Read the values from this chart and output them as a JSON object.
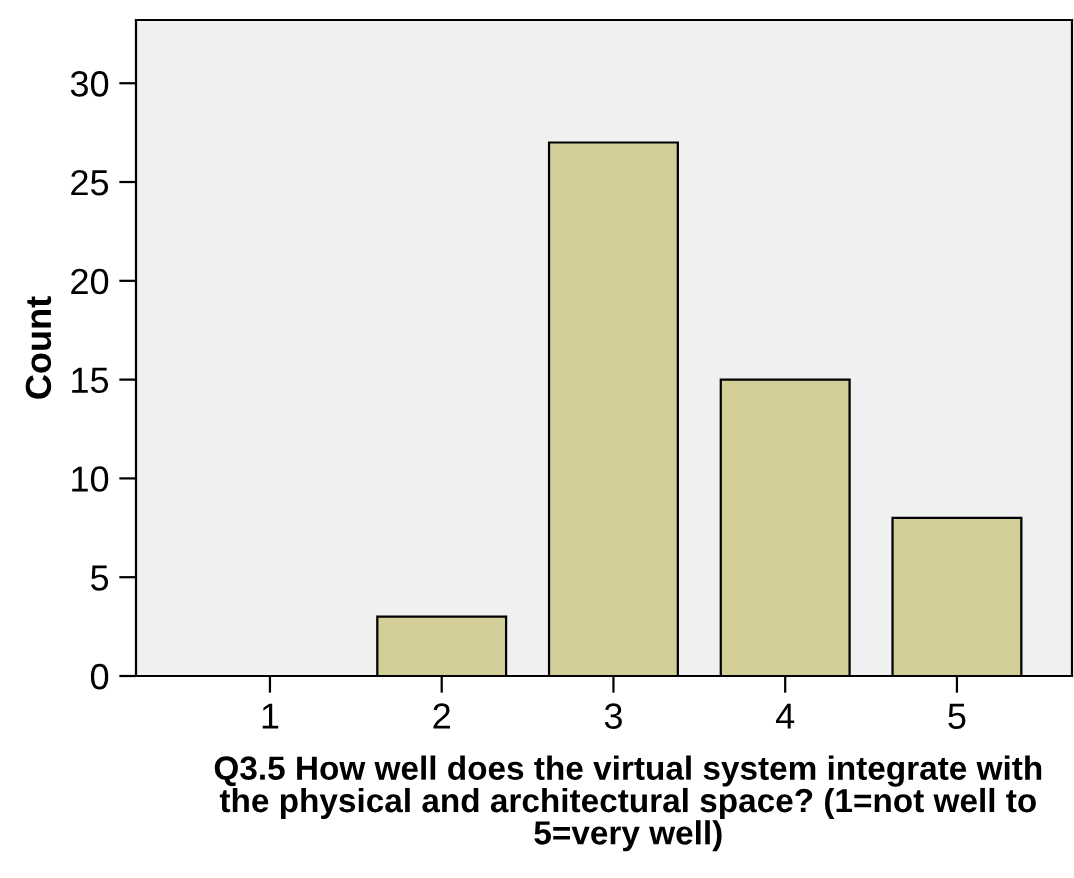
{
  "chart_data": {
    "type": "bar",
    "xlabel": "Q3.5 How well does the virtual system integrate with the physical and architectural space? (1=not well to 5=very well)",
    "ylabel": "Count",
    "categories": [
      "1",
      "2",
      "3",
      "4",
      "5"
    ],
    "values": [
      0,
      3,
      27,
      15,
      8
    ],
    "color": "#d3ce97",
    "ylim": [
      0,
      33.2
    ],
    "yticks": [
      0,
      5,
      10,
      15,
      20,
      25,
      30
    ],
    "grid": false,
    "legend": false
  }
}
